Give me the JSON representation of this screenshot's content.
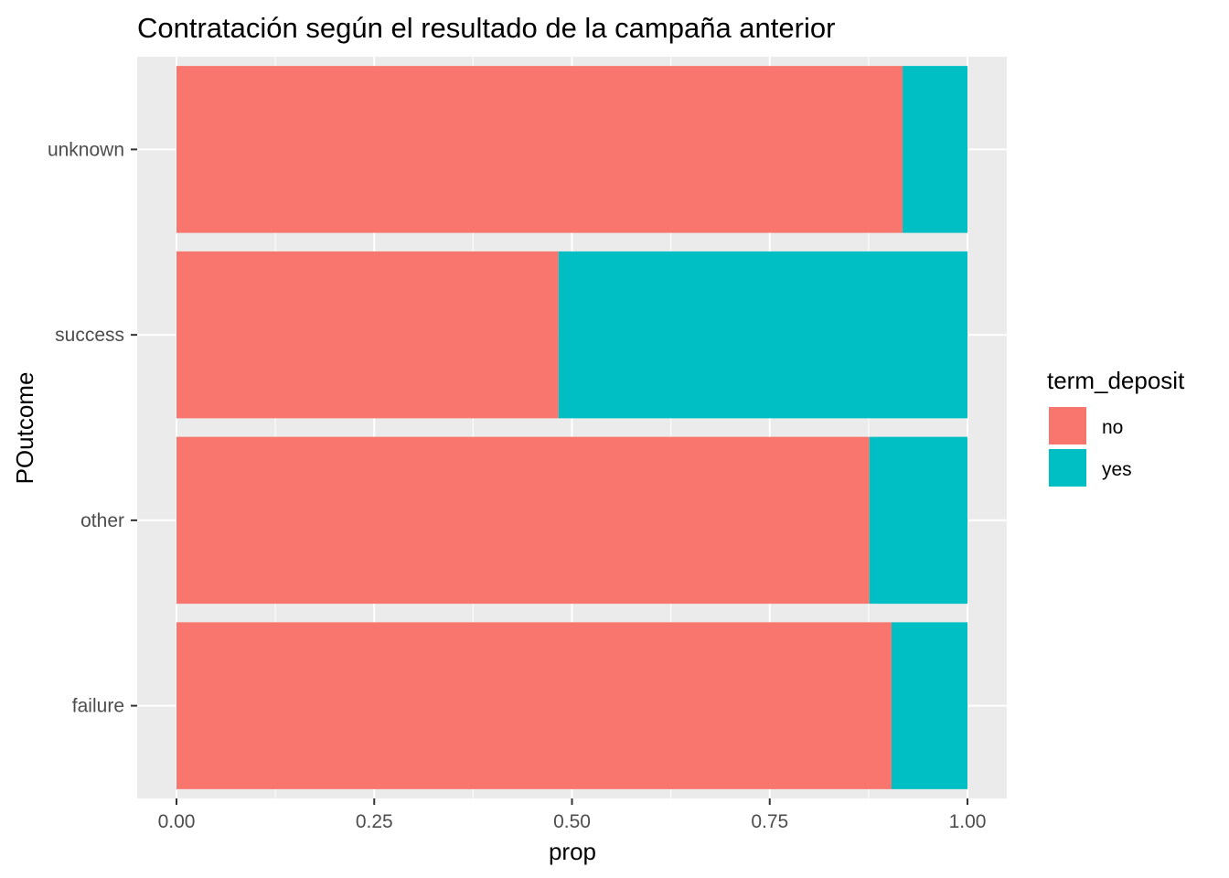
{
  "chart_data": {
    "type": "bar",
    "orientation": "horizontal",
    "stacked": true,
    "title": "Contratación según el resultado de la campaña anterior",
    "xlabel": "prop",
    "ylabel": "POutcome",
    "xlim": [
      0,
      1
    ],
    "xticks": [
      0,
      0.25,
      0.5,
      0.75,
      1
    ],
    "xtick_labels": [
      "0.00",
      "0.25",
      "0.50",
      "0.75",
      "1.00"
    ],
    "categories": [
      "unknown",
      "success",
      "other",
      "failure"
    ],
    "series": [
      {
        "name": "no",
        "color": "#F8766D",
        "values": [
          0.918,
          0.483,
          0.876,
          0.904
        ]
      },
      {
        "name": "yes",
        "color": "#00BFC4",
        "values": [
          0.082,
          0.517,
          0.124,
          0.096
        ]
      }
    ],
    "legend": {
      "title": "term_deposit",
      "position": "right"
    },
    "grid": true,
    "panel_color": "#EBEBEB",
    "grid_color": "#FFFFFF"
  }
}
